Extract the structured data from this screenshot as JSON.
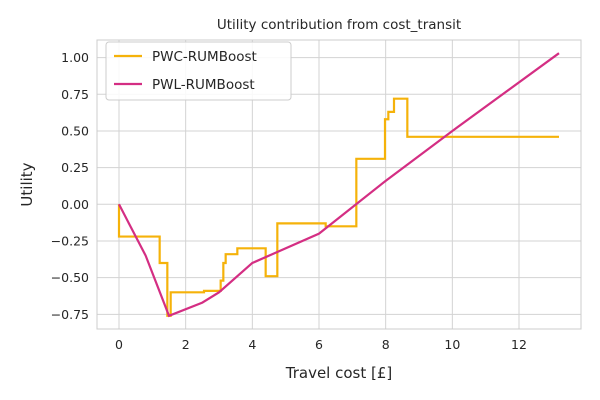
{
  "chart_data": {
    "type": "line",
    "title": "Utility contribution from cost_transit",
    "xlabel": "Travel cost [£]",
    "ylabel": "Utility",
    "xlim": [
      -0.66,
      13.86
    ],
    "ylim": [
      -0.85,
      1.12
    ],
    "xticks": [
      0,
      2,
      4,
      6,
      8,
      10,
      12
    ],
    "yticks": [
      -0.75,
      -0.5,
      -0.25,
      0.0,
      0.25,
      0.5,
      0.75,
      1.0
    ],
    "xtick_labels": [
      "0",
      "2",
      "4",
      "6",
      "8",
      "10",
      "12"
    ],
    "ytick_labels": [
      "−0.75",
      "−0.50",
      "−0.25",
      "0.00",
      "0.25",
      "0.50",
      "0.75",
      "1.00"
    ],
    "grid": true,
    "legend_position": "top-left",
    "series": [
      {
        "name": "PWC-RUMBoost",
        "color": "#f5b20a",
        "step": true,
        "points": [
          [
            0.0,
            0.0
          ],
          [
            0.0,
            -0.22
          ],
          [
            1.22,
            -0.22
          ],
          [
            1.22,
            -0.4
          ],
          [
            1.45,
            -0.4
          ],
          [
            1.45,
            -0.76
          ],
          [
            1.55,
            -0.76
          ],
          [
            1.55,
            -0.6
          ],
          [
            2.55,
            -0.6
          ],
          [
            2.55,
            -0.59
          ],
          [
            3.05,
            -0.59
          ],
          [
            3.05,
            -0.52
          ],
          [
            3.13,
            -0.52
          ],
          [
            3.13,
            -0.4
          ],
          [
            3.2,
            -0.4
          ],
          [
            3.2,
            -0.34
          ],
          [
            3.55,
            -0.34
          ],
          [
            3.55,
            -0.3
          ],
          [
            4.4,
            -0.3
          ],
          [
            4.4,
            -0.49
          ],
          [
            4.75,
            -0.49
          ],
          [
            4.75,
            -0.13
          ],
          [
            6.2,
            -0.13
          ],
          [
            6.2,
            -0.15
          ],
          [
            7.12,
            -0.15
          ],
          [
            7.12,
            0.31
          ],
          [
            7.98,
            0.31
          ],
          [
            7.98,
            0.58
          ],
          [
            8.08,
            0.58
          ],
          [
            8.08,
            0.63
          ],
          [
            8.25,
            0.63
          ],
          [
            8.25,
            0.72
          ],
          [
            8.65,
            0.72
          ],
          [
            8.65,
            0.46
          ],
          [
            13.2,
            0.46
          ]
        ]
      },
      {
        "name": "PWL-RUMBoost",
        "color": "#d42e83",
        "step": false,
        "points": [
          [
            0.0,
            0.0
          ],
          [
            0.8,
            -0.35
          ],
          [
            1.5,
            -0.76
          ],
          [
            2.5,
            -0.67
          ],
          [
            3.0,
            -0.6
          ],
          [
            4.0,
            -0.4
          ],
          [
            6.0,
            -0.2
          ],
          [
            8.0,
            0.16
          ],
          [
            10.0,
            0.5
          ],
          [
            13.2,
            1.03
          ]
        ]
      }
    ]
  }
}
